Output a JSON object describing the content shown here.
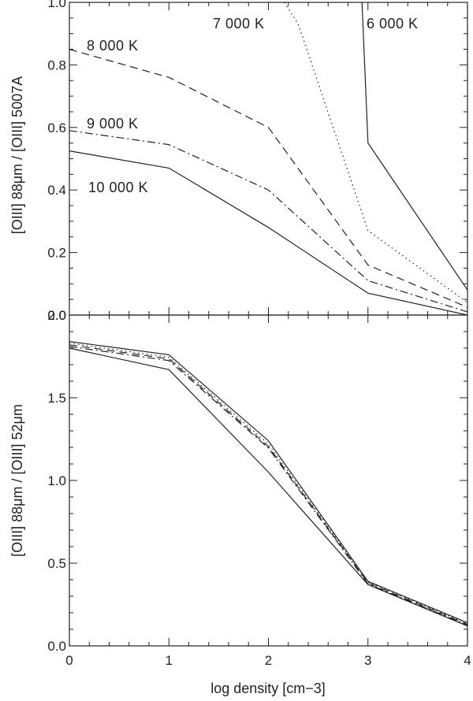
{
  "chart_data": [
    {
      "type": "line",
      "panel": "top",
      "xlabel": "",
      "ylabel": "[OIII] 88μm / [OIII] 5007A",
      "xlim": [
        0,
        4
      ],
      "ylim": [
        0,
        1.0
      ],
      "x_ticks": [
        0,
        1,
        2,
        3,
        4
      ],
      "y_ticks": [
        0.0,
        0.2,
        0.4,
        0.6,
        0.8,
        1.0
      ],
      "y_tick_labels": [
        "0.0",
        "0.2",
        "0.4",
        "0.6",
        "0.8",
        "1.0"
      ],
      "grid": false,
      "series": [
        {
          "name": "6 000 K",
          "style": "solid",
          "x": [
            2.94,
            3,
            4
          ],
          "y": [
            1.0,
            0.55,
            0.08
          ]
        },
        {
          "name": "7 000 K",
          "style": "dotted",
          "x": [
            2.16,
            2.3,
            3,
            4
          ],
          "y": [
            1.0,
            0.93,
            0.27,
            0.04
          ]
        },
        {
          "name": "8 000 K",
          "style": "dashed",
          "x": [
            0,
            1,
            2,
            3,
            4
          ],
          "y": [
            0.85,
            0.76,
            0.6,
            0.16,
            0.025
          ]
        },
        {
          "name": "9 000 K",
          "style": "dashdot",
          "x": [
            0,
            1,
            2,
            3,
            4
          ],
          "y": [
            0.59,
            0.545,
            0.4,
            0.11,
            0.01
          ]
        },
        {
          "name": "10 000 K",
          "style": "solid",
          "x": [
            0,
            1,
            2,
            3,
            4
          ],
          "y": [
            0.525,
            0.47,
            0.28,
            0.07,
            0.0
          ]
        }
      ]
    },
    {
      "type": "line",
      "panel": "bottom",
      "xlabel": "log density [cm−3]",
      "ylabel": "[OIII] 88μm / [OIII] 52μm",
      "xlim": [
        0,
        4
      ],
      "ylim": [
        0,
        2.0
      ],
      "x_ticks": [
        0,
        1,
        2,
        3,
        4
      ],
      "x_tick_labels": [
        "0",
        "1",
        "2",
        "3",
        "4"
      ],
      "y_ticks": [
        0.0,
        0.5,
        1.0,
        1.5,
        2.0
      ],
      "y_tick_labels": [
        "0.0",
        "0.5",
        "1.0",
        "1.5",
        "2.0"
      ],
      "grid": false,
      "series": [
        {
          "style": "solid",
          "x": [
            0,
            1,
            2,
            3,
            4
          ],
          "y": [
            1.84,
            1.76,
            1.24,
            0.39,
            0.14
          ]
        },
        {
          "style": "dotted",
          "x": [
            0,
            1,
            2,
            3,
            4
          ],
          "y": [
            1.83,
            1.745,
            1.22,
            0.385,
            0.135
          ]
        },
        {
          "style": "dashed",
          "x": [
            0,
            1,
            2,
            3,
            4
          ],
          "y": [
            1.82,
            1.735,
            1.205,
            0.38,
            0.13
          ]
        },
        {
          "style": "dashdot",
          "x": [
            0,
            1,
            2,
            3,
            4
          ],
          "y": [
            1.81,
            1.725,
            1.195,
            0.375,
            0.125
          ]
        },
        {
          "style": "solid",
          "x": [
            0,
            1,
            2,
            3,
            4
          ],
          "y": [
            1.8,
            1.67,
            1.05,
            0.37,
            0.12
          ]
        }
      ]
    }
  ],
  "series_labels": [
    {
      "text": "7 000 K"
    },
    {
      "text": "6 000 K"
    },
    {
      "text": "8 000 K"
    },
    {
      "text": "9 000 K"
    },
    {
      "text": "10 000 K"
    }
  ],
  "line_color": "#222222"
}
